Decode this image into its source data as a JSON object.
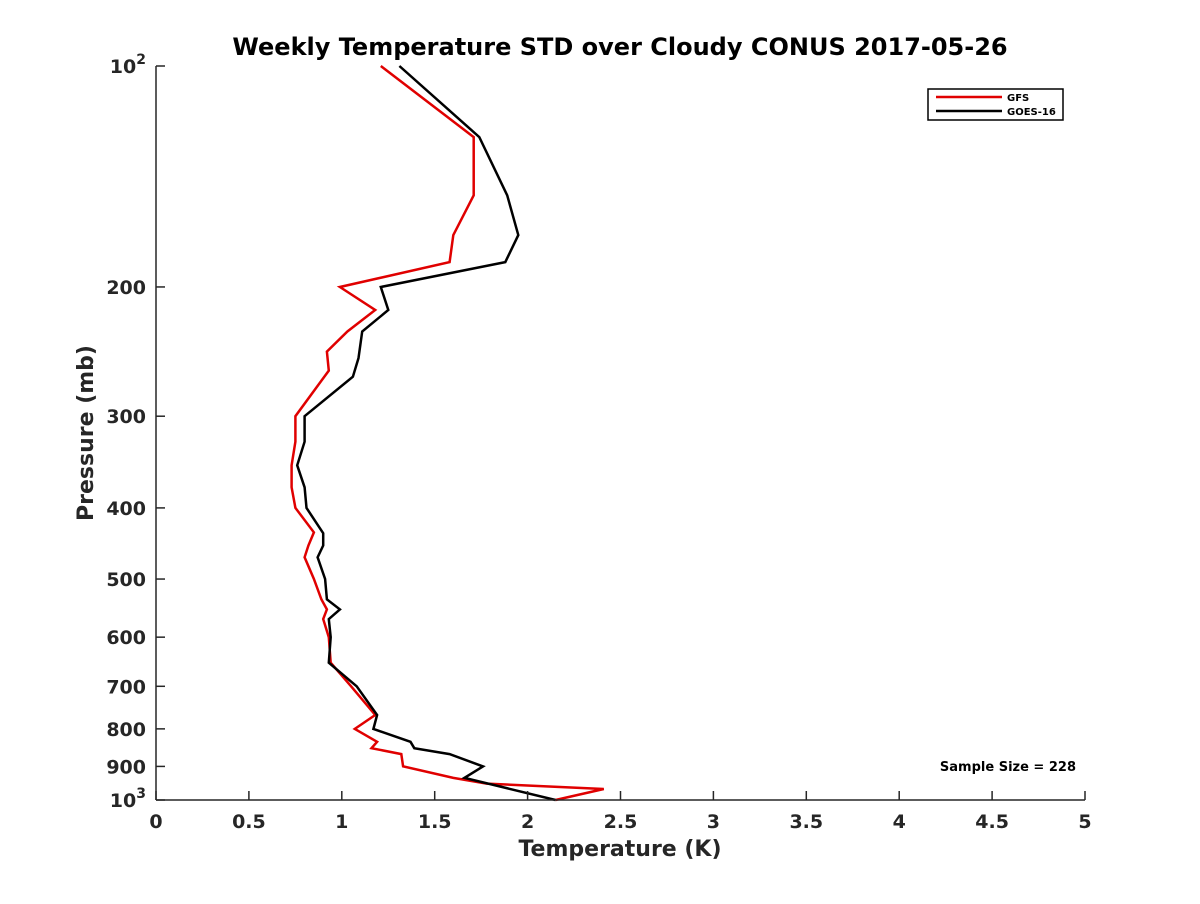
{
  "chart_data": {
    "type": "line",
    "title": "Weekly Temperature STD over Cloudy CONUS 2017-05-26",
    "xlabel": "Temperature (K)",
    "ylabel": "Pressure (mb)",
    "xlim": [
      0,
      5
    ],
    "ylim": [
      100,
      1000
    ],
    "y_scale": "log",
    "y_reversed": true,
    "grid": false,
    "legend_position": "top-right",
    "x_ticks": [
      {
        "value": 0,
        "label": "0"
      },
      {
        "value": 0.5,
        "label": "0.5"
      },
      {
        "value": 1,
        "label": "1"
      },
      {
        "value": 1.5,
        "label": "1.5"
      },
      {
        "value": 2,
        "label": "2"
      },
      {
        "value": 2.5,
        "label": "2.5"
      },
      {
        "value": 3,
        "label": "3"
      },
      {
        "value": 3.5,
        "label": "3.5"
      },
      {
        "value": 4,
        "label": "4"
      },
      {
        "value": 4.5,
        "label": "4.5"
      },
      {
        "value": 5,
        "label": "5"
      }
    ],
    "y_ticks": [
      {
        "value": 100,
        "base": "10",
        "exp": "2"
      },
      {
        "value": 200,
        "label": "200"
      },
      {
        "value": 300,
        "label": "300"
      },
      {
        "value": 400,
        "label": "400"
      },
      {
        "value": 500,
        "label": "500"
      },
      {
        "value": 600,
        "label": "600"
      },
      {
        "value": 700,
        "label": "700"
      },
      {
        "value": 800,
        "label": "800"
      },
      {
        "value": 900,
        "label": "900"
      },
      {
        "value": 1000,
        "base": "10",
        "exp": "3"
      }
    ],
    "annotation": "Sample Size = 228",
    "series": [
      {
        "name": "GFS",
        "color": "#e00000",
        "points": [
          [
            1.21,
            100
          ],
          [
            1.71,
            125
          ],
          [
            1.71,
            150
          ],
          [
            1.6,
            170
          ],
          [
            1.58,
            185
          ],
          [
            0.99,
            200
          ],
          [
            1.18,
            215
          ],
          [
            1.03,
            230
          ],
          [
            0.92,
            245
          ],
          [
            0.93,
            260
          ],
          [
            0.75,
            300
          ],
          [
            0.75,
            325
          ],
          [
            0.73,
            350
          ],
          [
            0.73,
            375
          ],
          [
            0.75,
            400
          ],
          [
            0.85,
            432
          ],
          [
            0.82,
            450
          ],
          [
            0.8,
            467
          ],
          [
            0.85,
            500
          ],
          [
            0.89,
            533
          ],
          [
            0.92,
            550
          ],
          [
            0.9,
            567
          ],
          [
            0.93,
            600
          ],
          [
            0.94,
            650
          ],
          [
            1.05,
            700
          ],
          [
            1.18,
            766
          ],
          [
            1.07,
            800
          ],
          [
            1.19,
            833
          ],
          [
            1.16,
            850
          ],
          [
            1.32,
            866
          ],
          [
            1.33,
            900
          ],
          [
            1.6,
            933
          ],
          [
            1.78,
            950
          ],
          [
            2.41,
            966
          ],
          [
            2.15,
            1000
          ]
        ]
      },
      {
        "name": "GOES-16",
        "color": "#000000",
        "points": [
          [
            1.31,
            100
          ],
          [
            1.74,
            125
          ],
          [
            1.89,
            150
          ],
          [
            1.95,
            170
          ],
          [
            1.88,
            185
          ],
          [
            1.21,
            200
          ],
          [
            1.25,
            215
          ],
          [
            1.11,
            230
          ],
          [
            1.09,
            250
          ],
          [
            1.06,
            265
          ],
          [
            0.8,
            300
          ],
          [
            0.8,
            325
          ],
          [
            0.76,
            350
          ],
          [
            0.8,
            375
          ],
          [
            0.81,
            400
          ],
          [
            0.9,
            433
          ],
          [
            0.9,
            450
          ],
          [
            0.87,
            467
          ],
          [
            0.91,
            500
          ],
          [
            0.92,
            533
          ],
          [
            0.99,
            550
          ],
          [
            0.93,
            567
          ],
          [
            0.94,
            600
          ],
          [
            0.93,
            650
          ],
          [
            1.08,
            700
          ],
          [
            1.19,
            766
          ],
          [
            1.17,
            800
          ],
          [
            1.37,
            833
          ],
          [
            1.39,
            850
          ],
          [
            1.58,
            866
          ],
          [
            1.76,
            900
          ],
          [
            1.66,
            933
          ],
          [
            2.15,
            1000
          ]
        ]
      }
    ]
  }
}
